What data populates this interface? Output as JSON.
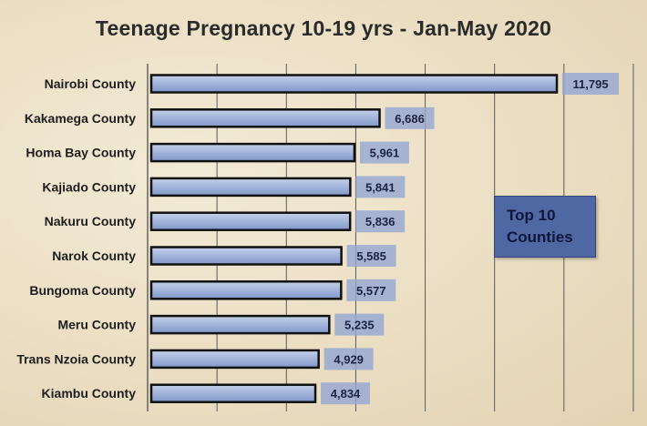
{
  "chart_data": {
    "type": "bar",
    "orientation": "horizontal",
    "title": "Teenage Pregnancy 10-19 yrs - Jan-May 2020",
    "categories": [
      "Nairobi County",
      "Kakamega County",
      "Homa Bay County",
      "Kajiado County",
      "Nakuru County",
      "Narok County",
      "Bungoma County",
      "Meru County",
      "Trans Nzoia County",
      "Kiambu County"
    ],
    "values": [
      11795,
      6686,
      5961,
      5841,
      5836,
      5585,
      5577,
      5235,
      4929,
      4834
    ],
    "value_labels": [
      "11,795",
      "6,686",
      "5,961",
      "5,841",
      "5,836",
      "5,585",
      "5,577",
      "5,235",
      "4,929",
      "4,834"
    ],
    "xlim": [
      0,
      14000
    ],
    "grid_step": 2000,
    "grid": true,
    "xlabel": "",
    "ylabel": "",
    "annotation": [
      "Top 10",
      "Counties"
    ],
    "colors": {
      "bar_fill_top": "#c5d1ea",
      "bar_fill_bottom": "#7f97c9",
      "bar_border": "#111111",
      "label_box": "#93a6d2",
      "grid": "#5a5a5a",
      "callout": "#4f67a3"
    }
  }
}
